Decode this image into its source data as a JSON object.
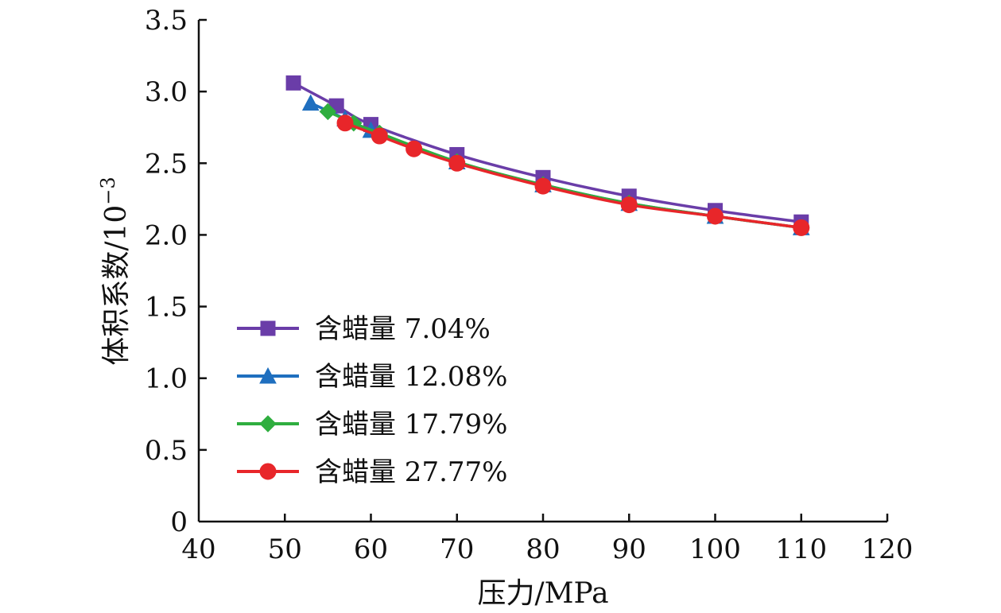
{
  "chart_data": {
    "type": "line",
    "title": "",
    "xlabel": "压力/MPa",
    "ylabel_main": "体积系数/10",
    "ylabel_exp": "−3",
    "xlim": [
      40,
      120
    ],
    "ylim": [
      0,
      3.5
    ],
    "x_ticks": [
      40,
      50,
      60,
      70,
      80,
      90,
      100,
      110,
      120
    ],
    "y_ticks": [
      0,
      0.5,
      1.0,
      1.5,
      2.0,
      2.5,
      3.0,
      3.5
    ],
    "x_tick_labels": [
      "40",
      "50",
      "60",
      "70",
      "80",
      "90",
      "100",
      "110",
      "120"
    ],
    "y_tick_labels": [
      "0",
      "0.5",
      "1.0",
      "1.5",
      "2.0",
      "2.5",
      "3.0",
      "3.5"
    ],
    "grid": false,
    "legend_position": "left-middle",
    "series": [
      {
        "name": "含蜡量 7.04%",
        "color": "#6a3da8",
        "marker": "square",
        "x": [
          51,
          56,
          60,
          70,
          80,
          90,
          100,
          110
        ],
        "y": [
          3.06,
          2.9,
          2.77,
          2.56,
          2.4,
          2.27,
          2.17,
          2.09
        ]
      },
      {
        "name": "含蜡量 12.08%",
        "color": "#1f6fbf",
        "marker": "triangle",
        "x": [
          53,
          57,
          60,
          70,
          80,
          90,
          100,
          110
        ],
        "y": [
          2.92,
          2.81,
          2.73,
          2.51,
          2.35,
          2.22,
          2.13,
          2.05
        ]
      },
      {
        "name": "含蜡量 17.79%",
        "color": "#2fae3f",
        "marker": "diamond",
        "x": [
          55,
          58,
          61,
          70,
          80,
          90,
          100,
          110
        ],
        "y": [
          2.86,
          2.78,
          2.71,
          2.51,
          2.35,
          2.22,
          2.13,
          2.05
        ]
      },
      {
        "name": "含蜡量 27.77%",
        "color": "#e8262a",
        "marker": "circle",
        "x": [
          57,
          61,
          65,
          70,
          80,
          90,
          100,
          110
        ],
        "y": [
          2.78,
          2.69,
          2.6,
          2.5,
          2.34,
          2.21,
          2.13,
          2.05
        ]
      }
    ]
  }
}
